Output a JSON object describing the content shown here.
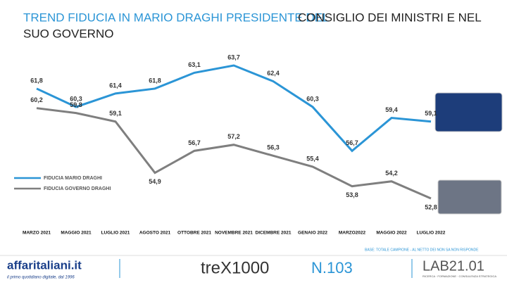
{
  "chart_data": {
    "type": "line",
    "title_parts": [
      "TREND FIDUCIA IN MARIO DRAGHI PRESIDENTE DEL",
      "CONSIGLIO DEI MINISTRI E NEL",
      "SUO GOVERNO"
    ],
    "categories": [
      "MARZO 2021",
      "MAGGIO 2021",
      "LUGLIO 2021",
      "AGOSTO 2021",
      "OTTOBRE 2021",
      "NOVEMBRE 2021",
      "DICEMBRE 2021",
      "GENAIO 2022",
      "MARZO2022",
      "MAGGIO 2022",
      "LUGLIO 2022"
    ],
    "series": [
      {
        "name": "FIDUCIA MARIO DRAGHI",
        "color": "#2b95d6",
        "values": [
          61.8,
          60.3,
          61.4,
          61.8,
          63.1,
          63.7,
          62.4,
          60.3,
          56.7,
          59.4,
          59.1
        ],
        "value_labels": [
          "61,8",
          "60,3",
          "61,4",
          "61,8",
          "63,1",
          "63,7",
          "62,4",
          "60,3",
          "56,7",
          "59,4",
          "59,1"
        ]
      },
      {
        "name": "FIDUCIA GOVERNO DRAGHI",
        "color": "#7f7f7f",
        "values": [
          60.2,
          59.8,
          59.1,
          54.9,
          56.7,
          57.2,
          56.3,
          55.4,
          53.8,
          54.2,
          52.8
        ],
        "value_labels": [
          "60,2",
          "59,8",
          "59,1",
          "54,9",
          "56,7",
          "57,2",
          "56,3",
          "55,4",
          "53,8",
          "54,2",
          "52,8"
        ]
      }
    ],
    "legend": "left",
    "footer": {
      "base": "BASE: TOTALE CAMPIONE - AL NETTO DEI NON SA NON RISPONDE",
      "brand": "affaritaliani.it",
      "tagline": "il primo quotidiano digitale, dal 1996",
      "partner": "treX1000",
      "issue": "N.103",
      "lab": "LAB21.01",
      "lab_tagline": "RICERCA · FORMAZIONE · CONSULENZA STRATEGICA"
    }
  }
}
